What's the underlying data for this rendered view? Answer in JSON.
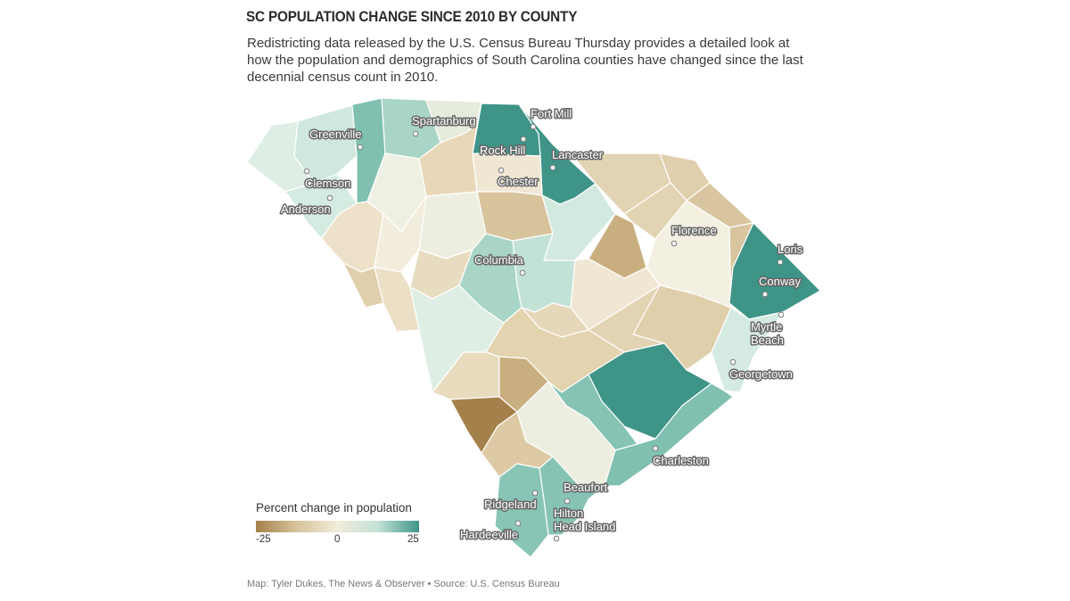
{
  "header": {
    "title": "SC POPULATION CHANGE SINCE 2010 BY COUNTY",
    "subtitle": "Redistricting data released by the U.S. Census Bureau Thursday provides a detailed look at how the population and demographics of South Carolina counties have changed since the last decennial census count in 2010."
  },
  "legend": {
    "title": "Percent change in population",
    "min_label": "-25",
    "mid_label": "0",
    "max_label": "25",
    "colors": [
      "#a4804a",
      "#d7c39c",
      "#f1ecdb",
      "#c3e2d6",
      "#3f9488"
    ]
  },
  "cities": [
    {
      "name": "Fort Mill"
    },
    {
      "name": "Spartanburg"
    },
    {
      "name": "Greenville"
    },
    {
      "name": "Rock Hill"
    },
    {
      "name": "Lancaster"
    },
    {
      "name": "Chester"
    },
    {
      "name": "Clemson"
    },
    {
      "name": "Anderson"
    },
    {
      "name": "Florence"
    },
    {
      "name": "Loris"
    },
    {
      "name": "Columbia"
    },
    {
      "name": "Conway"
    },
    {
      "name": "Myrtle Beach"
    },
    {
      "name": "Georgetown"
    },
    {
      "name": "Charleston"
    },
    {
      "name": "Beaufort"
    },
    {
      "name": "Ridgeland"
    },
    {
      "name": "Hilton Head Island"
    },
    {
      "name": "Hardeeville"
    }
  ],
  "credit": "Map: Tyler Dukes, The News & Observer • Source: U.S. Census Bureau"
}
